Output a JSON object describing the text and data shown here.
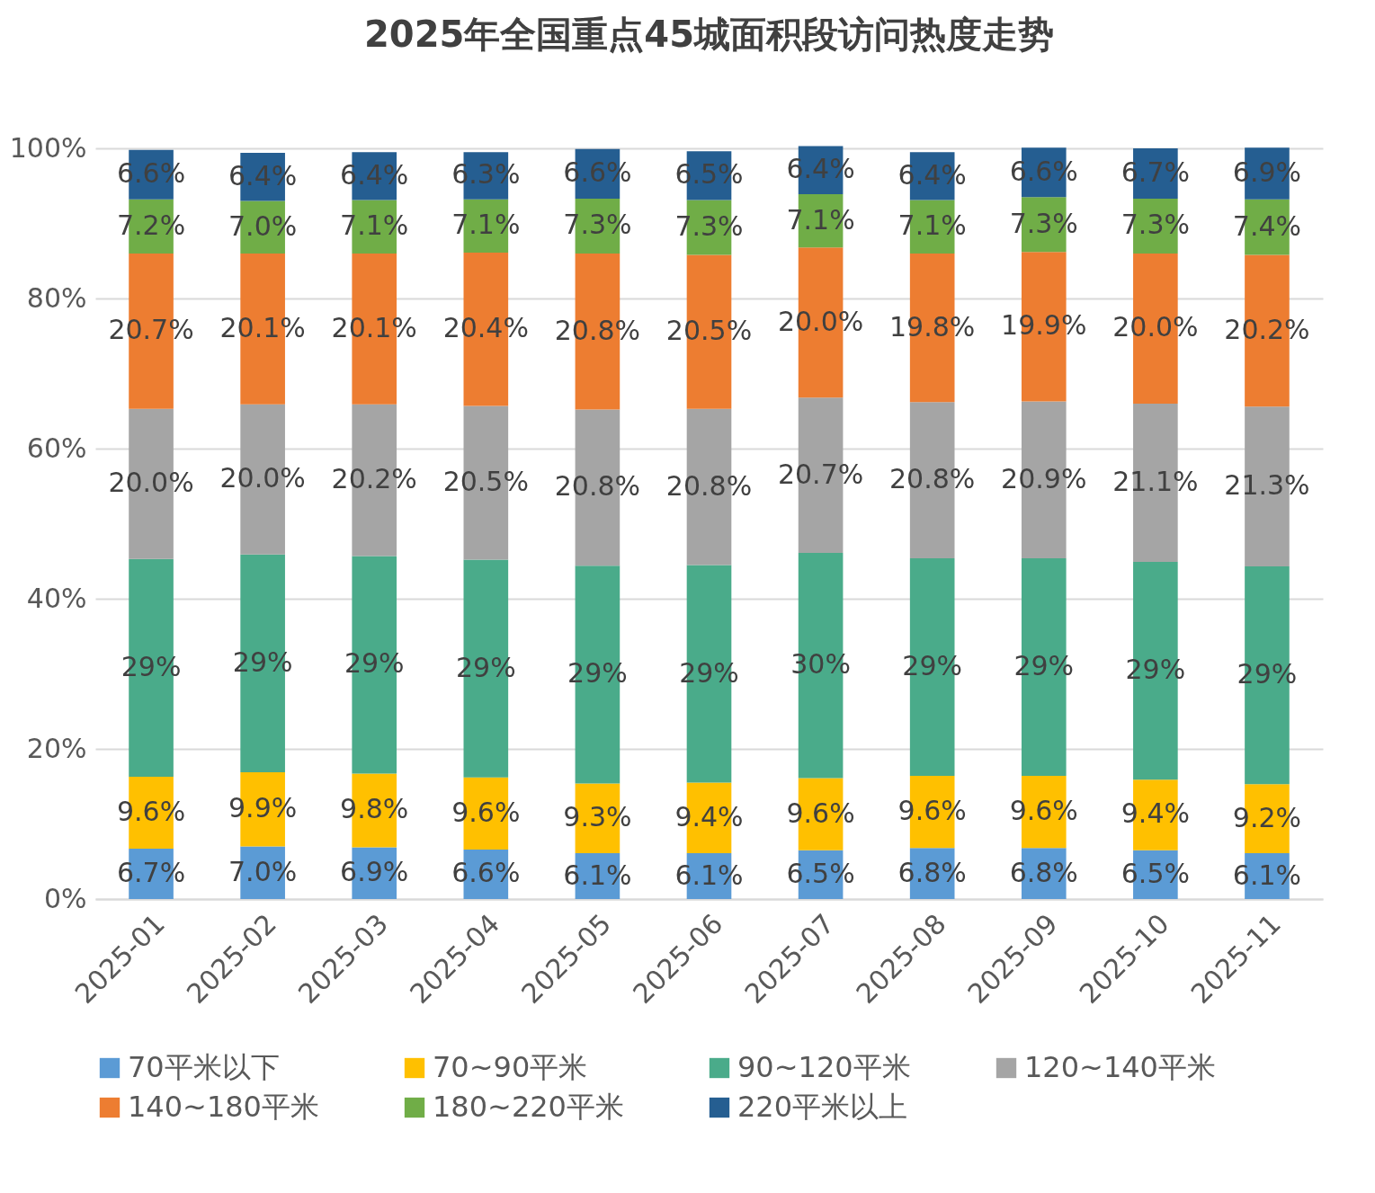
{
  "chart_data": {
    "type": "bar",
    "stacked": true,
    "title": "2025年全国重点45城面积段访问热度走势",
    "categories": [
      "2025-01",
      "2025-02",
      "2025-03",
      "2025-04",
      "2025-05",
      "2025-06",
      "2025-07",
      "2025-08",
      "2025-09",
      "2025-10",
      "2025-11"
    ],
    "series": [
      {
        "name": "70平米以下",
        "color": "#5b9bd5",
        "values": [
          6.7,
          7.0,
          6.9,
          6.6,
          6.1,
          6.1,
          6.5,
          6.8,
          6.8,
          6.5,
          6.1
        ],
        "value_labels": [
          "6.7%",
          "7.0%",
          "6.9%",
          "6.6%",
          "6.1%",
          "6.1%",
          "6.5%",
          "6.8%",
          "6.8%",
          "6.5%",
          "6.1%"
        ]
      },
      {
        "name": "70~90平米",
        "color": "#ffc000",
        "values": [
          9.6,
          9.9,
          9.8,
          9.6,
          9.3,
          9.4,
          9.6,
          9.6,
          9.6,
          9.4,
          9.2
        ],
        "value_labels": [
          "9.6%",
          "9.9%",
          "9.8%",
          "9.6%",
          "9.3%",
          "9.4%",
          "9.6%",
          "9.6%",
          "9.6%",
          "9.4%",
          "9.2%"
        ]
      },
      {
        "name": "90~120平米",
        "color": "#4aab8a",
        "values": [
          29,
          29,
          29,
          29,
          29,
          29,
          30,
          29,
          29,
          29,
          29
        ],
        "value_labels": [
          "29%",
          "29%",
          "29%",
          "29%",
          "29%",
          "29%",
          "30%",
          "29%",
          "29%",
          "29%",
          "29%"
        ]
      },
      {
        "name": "120~140平米",
        "color": "#a5a5a5",
        "values": [
          20.0,
          20.0,
          20.2,
          20.5,
          20.8,
          20.8,
          20.7,
          20.8,
          20.9,
          21.1,
          21.3
        ],
        "value_labels": [
          "20.0%",
          "20.0%",
          "20.2%",
          "20.5%",
          "20.8%",
          "20.8%",
          "20.7%",
          "20.8%",
          "20.9%",
          "21.1%",
          "21.3%"
        ]
      },
      {
        "name": "140~180平米",
        "color": "#ed7d31",
        "values": [
          20.7,
          20.1,
          20.1,
          20.4,
          20.8,
          20.5,
          20.0,
          19.8,
          19.9,
          20.0,
          20.2
        ],
        "value_labels": [
          "20.7%",
          "20.1%",
          "20.1%",
          "20.4%",
          "20.8%",
          "20.5%",
          "20.0%",
          "19.8%",
          "19.9%",
          "20.0%",
          "20.2%"
        ]
      },
      {
        "name": "180~220平米",
        "color": "#70ad47",
        "values": [
          7.2,
          7.0,
          7.1,
          7.1,
          7.3,
          7.3,
          7.1,
          7.1,
          7.3,
          7.3,
          7.4
        ],
        "value_labels": [
          "7.2%",
          "7.0%",
          "7.1%",
          "7.1%",
          "7.3%",
          "7.3%",
          "7.1%",
          "7.1%",
          "7.3%",
          "7.3%",
          "7.4%"
        ]
      },
      {
        "name": "220平米以上",
        "color": "#255e91",
        "values": [
          6.6,
          6.4,
          6.4,
          6.3,
          6.6,
          6.5,
          6.4,
          6.4,
          6.6,
          6.7,
          6.9
        ],
        "value_labels": [
          "6.6%",
          "6.4%",
          "6.4%",
          "6.3%",
          "6.6%",
          "6.5%",
          "6.4%",
          "6.4%",
          "6.6%",
          "6.7%",
          "6.9%"
        ]
      }
    ],
    "ylim": [
      0,
      100
    ],
    "yticks": [
      {
        "value": 0,
        "label": "0%"
      },
      {
        "value": 20,
        "label": "20%"
      },
      {
        "value": 40,
        "label": "40%"
      },
      {
        "value": 60,
        "label": "60%"
      },
      {
        "value": 80,
        "label": "80%"
      },
      {
        "value": 100,
        "label": "100%"
      }
    ],
    "grid": "y",
    "legend": "bottom"
  }
}
